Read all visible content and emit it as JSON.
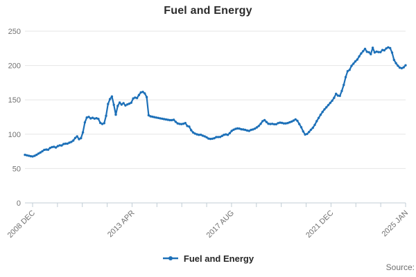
{
  "header": {
    "title": "Fuel and Energy"
  },
  "legend": {
    "label": "Fuel and Energy"
  },
  "footer": {
    "source": "Source:"
  },
  "colors": {
    "accent": "#1d70b8",
    "grid": "#e6e6e6",
    "axis": "#c0ccd4",
    "muted_text": "#707070",
    "text": "#2b2b2b"
  },
  "chart_data": {
    "type": "line",
    "title": "Fuel and Energy",
    "xlabel": "",
    "ylabel": "",
    "ylim": [
      0,
      250
    ],
    "y_ticks": [
      0,
      50,
      100,
      150,
      200,
      250
    ],
    "grid": "horizontal",
    "legend_position": "bottom",
    "x_tick_count": 16,
    "x_tick_labels": [
      {
        "pos": 0,
        "label": "2008 DEC"
      },
      {
        "pos": 4,
        "label": "2013 APR"
      },
      {
        "pos": 8,
        "label": "2017 AUG"
      },
      {
        "pos": 12,
        "label": "2021 DEC"
      },
      {
        "pos": 15,
        "label": "2025 JAN"
      }
    ],
    "series": [
      {
        "name": "Fuel and Energy",
        "color": "#1d70b8",
        "frequency": "monthly",
        "start": "2008-08",
        "end": "2025-01",
        "values": [
          70,
          69.3,
          68.6,
          67.9,
          67.6,
          68.5,
          70,
          71.8,
          73.4,
          75.2,
          77.2,
          77.6,
          77.4,
          79.9,
          81.3,
          81.7,
          80.6,
          82.7,
          83.8,
          83.6,
          85.7,
          86.2,
          86.3,
          87.7,
          88.8,
          90.7,
          94.6,
          96.9,
          92.7,
          94.3,
          102.7,
          117.1,
          124.3,
          125.2,
          123,
          123.9,
          122.7,
          123.3,
          122.3,
          116.4,
          114.9,
          116,
          126.8,
          144,
          151.1,
          154.9,
          142.7,
          128.4,
          141.1,
          146.1,
          143.1,
          145.3,
          141.8,
          143.3,
          144.5,
          145.9,
          152,
          153.3,
          152.6,
          157.1,
          160.9,
          161.6,
          159.4,
          154,
          127.5,
          126,
          125.4,
          124.8,
          124.2,
          123.7,
          123.1,
          122.6,
          122,
          121.5,
          121,
          120.5,
          120.5,
          121,
          118,
          115.7,
          115,
          114.7,
          115.2,
          116.2,
          112,
          111.1,
          105.8,
          102.6,
          100.9,
          99.8,
          99.1,
          99.2,
          97.9,
          96.9,
          95.5,
          93.6,
          93.1,
          93.4,
          94.2,
          95.8,
          95.9,
          96,
          97.5,
          99.1,
          99.7,
          99.1,
          101.6,
          104.8,
          106.6,
          107.8,
          108.4,
          108.2,
          107.2,
          106.9,
          106.3,
          105.3,
          104.8,
          106.2,
          107,
          108.1,
          109.9,
          112,
          115.1,
          119.1,
          120.5,
          117.7,
          115.2,
          114.8,
          115.1,
          114.5,
          114.5,
          116.1,
          116.8,
          116.4,
          115.7,
          115.7,
          116.2,
          117.3,
          118.3,
          119.9,
          121.6,
          119.6,
          114.8,
          110.1,
          104,
          99.6,
          100.4,
          103.2,
          106.5,
          109.3,
          113.6,
          119,
          123.7,
          128.3,
          132.5,
          136.2,
          139.1,
          142.3,
          145.6,
          148.8,
          153,
          158.9,
          156.1,
          155.8,
          163,
          171.8,
          183.2,
          191.7,
          193.6,
          199.5,
          202.7,
          205.9,
          208.7,
          213.3,
          217.5,
          220.9,
          224.2,
          220,
          219.4,
          216.5,
          225.8,
          219,
          220.2,
          219.6,
          219.5,
          222.6,
          222.1,
          224.9,
          226.4,
          225.3,
          218.8,
          208.2,
          203.4,
          199.7,
          196.9,
          196.1,
          197.3,
          200.3
        ]
      }
    ]
  }
}
